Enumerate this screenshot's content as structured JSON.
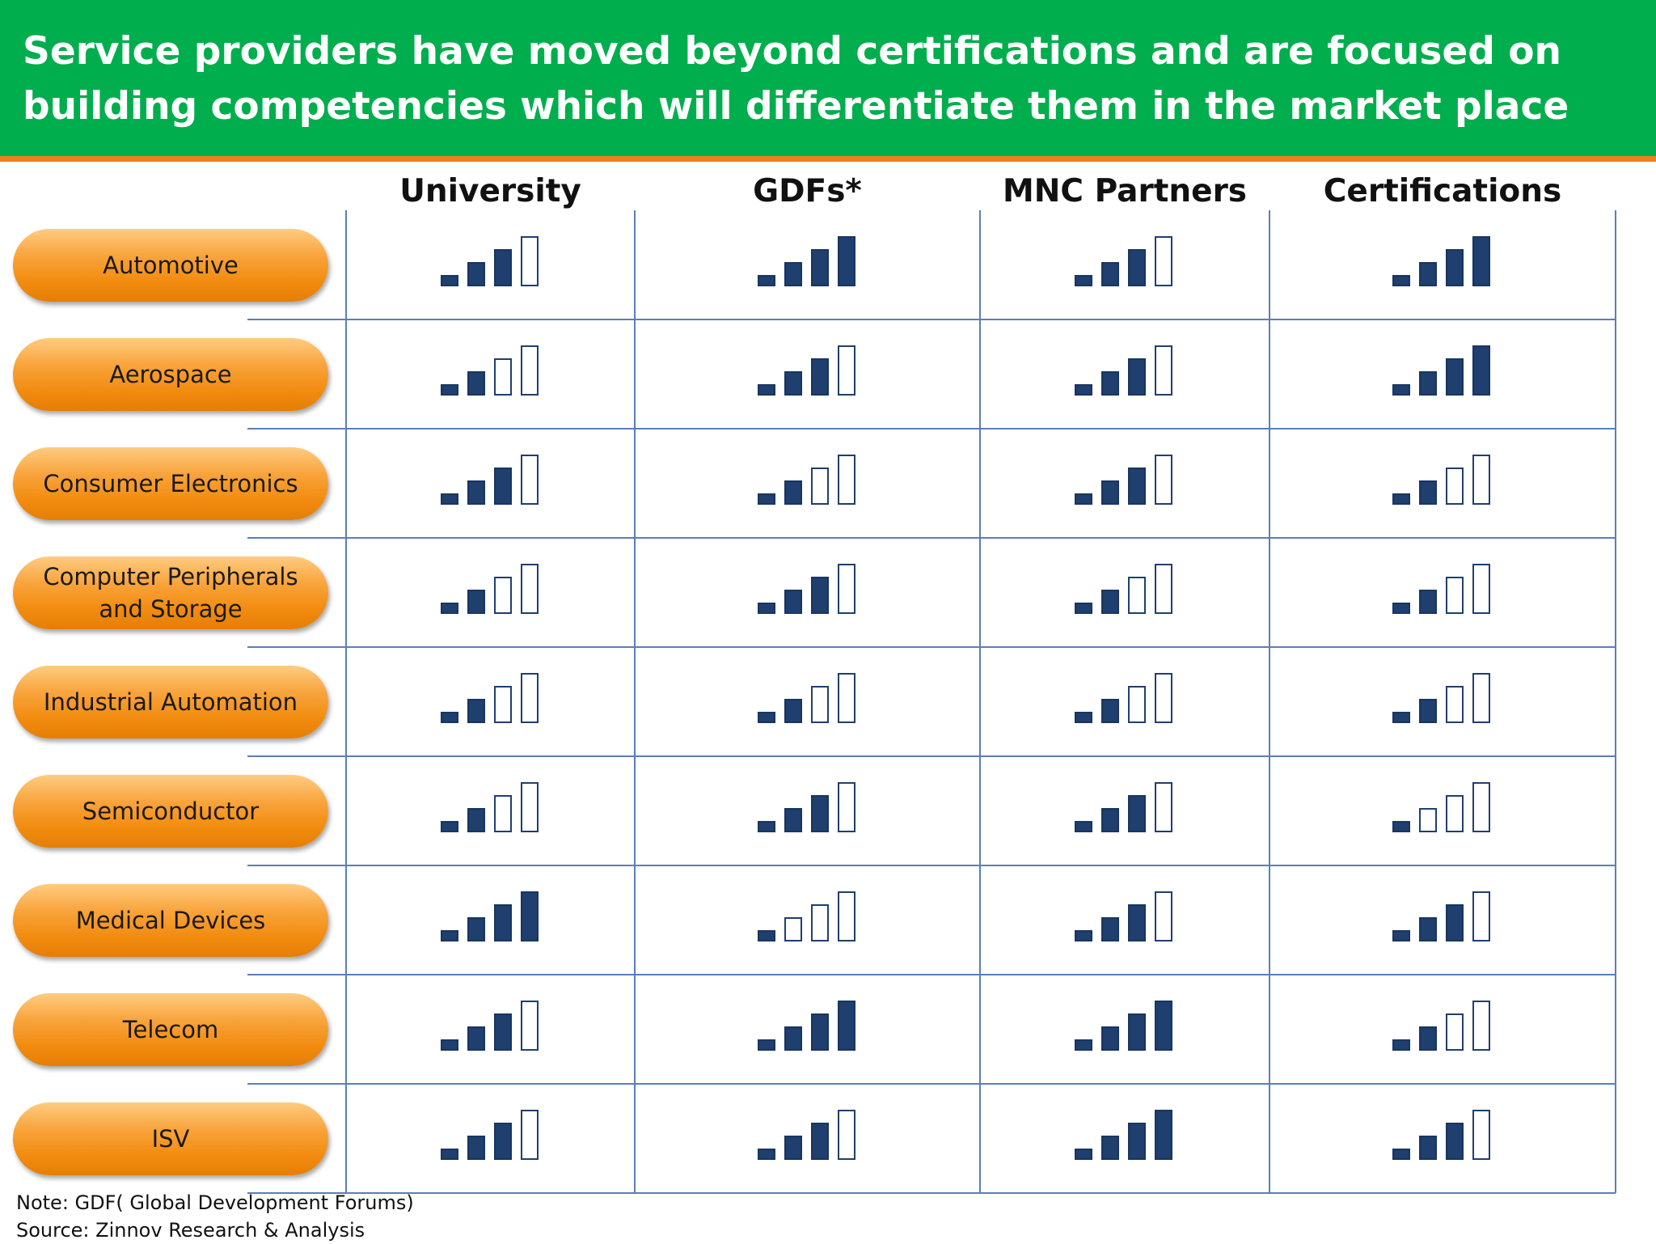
{
  "title": "Service providers have moved beyond certifications and are focused on building competencies which will differentiate them in the market place",
  "colors": {
    "banner": "#00ae4e",
    "banner_rule": "#f07f1d",
    "pill": "#f28c10",
    "bar_filled": "#1f3f6e",
    "grid": "#5b7fb5"
  },
  "chart_data": {
    "type": "table",
    "scale_max": 4,
    "columns": [
      "University",
      "GDFs*",
      "MNC Partners",
      "Certifications"
    ],
    "rows": [
      {
        "label": "Automotive",
        "values": [
          3,
          4,
          3,
          4
        ]
      },
      {
        "label": "Aerospace",
        "values": [
          2,
          3,
          3,
          4
        ]
      },
      {
        "label": "Consumer Electronics",
        "values": [
          3,
          2,
          3,
          2
        ]
      },
      {
        "label": "Computer Peripherals and Storage",
        "values": [
          2,
          3,
          2,
          2
        ]
      },
      {
        "label": "Industrial Automation",
        "values": [
          2,
          2,
          2,
          2
        ]
      },
      {
        "label": "Semiconductor",
        "values": [
          2,
          3,
          3,
          1
        ]
      },
      {
        "label": "Medical Devices",
        "values": [
          4,
          1,
          3,
          3
        ]
      },
      {
        "label": "Telecom",
        "values": [
          3,
          4,
          4,
          2
        ]
      },
      {
        "label": "ISV",
        "values": [
          3,
          3,
          4,
          3
        ]
      }
    ]
  },
  "notes": {
    "note": "Note: GDF( Global Development Forums)",
    "source": "Source: Zinnov Research & Analysis"
  }
}
